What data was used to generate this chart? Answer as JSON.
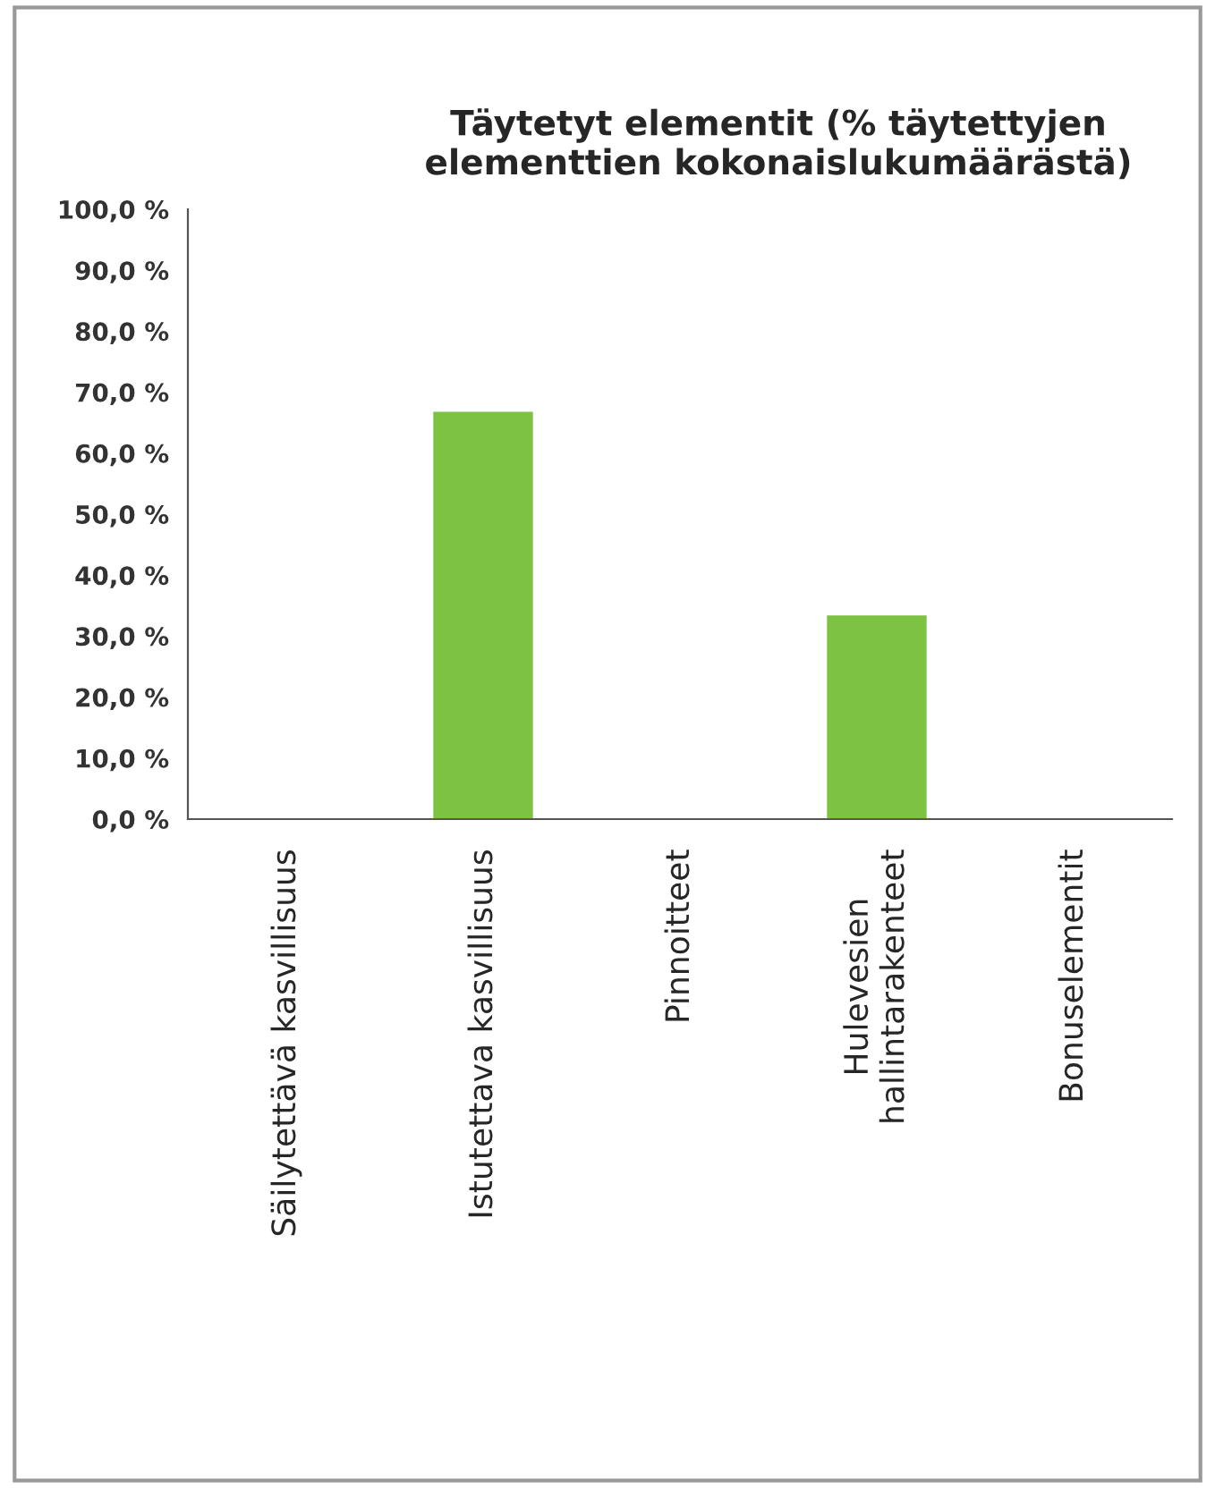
{
  "chart_data": {
    "type": "bar",
    "title": "Täytetyt elementit (% täytettyjen\nelementtien kokonaislukumäärästä)",
    "categories": [
      "Säilytettävä kasvillisuus",
      "Istutettava kasvillisuus",
      "Pinnoitteet",
      "Hulevesien\nhallintarakenteet",
      "Bonuselementit"
    ],
    "values": [
      0,
      66.7,
      0,
      33.3,
      0
    ],
    "color": "#7dc242",
    "ylim": [
      0,
      100
    ],
    "yticks": [
      {
        "value": 0,
        "label": "0,0 %"
      },
      {
        "value": 10,
        "label": "10,0 %"
      },
      {
        "value": 20,
        "label": "20,0 %"
      },
      {
        "value": 30,
        "label": "30,0 %"
      },
      {
        "value": 40,
        "label": "40,0 %"
      },
      {
        "value": 50,
        "label": "50,0 %"
      },
      {
        "value": 60,
        "label": "60,0 %"
      },
      {
        "value": 70,
        "label": "70,0 %"
      },
      {
        "value": 80,
        "label": "80,0 %"
      },
      {
        "value": 90,
        "label": "90,0 %"
      },
      {
        "value": 100,
        "label": "100,0 %"
      }
    ],
    "grid": false,
    "legend": false
  }
}
